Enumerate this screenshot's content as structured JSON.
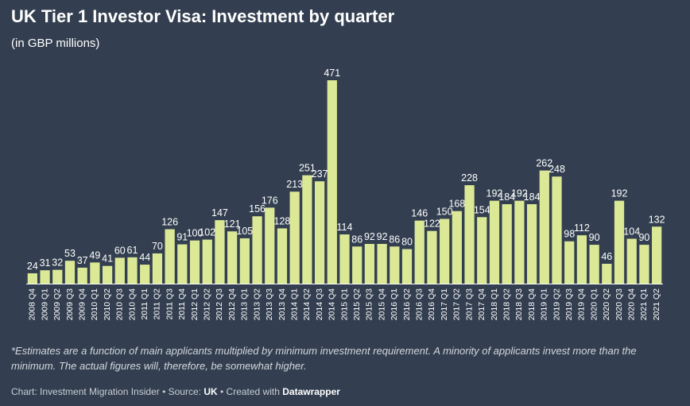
{
  "title": "UK Tier 1 Investor Visa: Investment by quarter",
  "subtitle": "(in GBP millions)",
  "note": "*Estimates are a function of main applicants multiplied by minimum investment requirement. A minority of applicants invest more than the minimum. The actual figures will, therefore, be somewhat higher.",
  "footer": {
    "prefix": "Chart: Investment Migration Insider • Source: ",
    "source": "UK",
    "middle": " • Created with ",
    "tool": "Datawrapper"
  },
  "colors": {
    "background": "#333f50",
    "bar": "#dbe896",
    "text": "#ffffff",
    "baseline": "#ffffff"
  },
  "chart_data": {
    "type": "bar",
    "title": "UK Tier 1 Investor Visa: Investment by quarter",
    "subtitle": "(in GBP millions)",
    "xlabel": "",
    "ylabel": "",
    "ylim": [
      0,
      471
    ],
    "grid": false,
    "data_labels": true,
    "categories": [
      "2008 Q4",
      "2009 Q1",
      "2009 Q2",
      "2009 Q3",
      "2009 Q4",
      "2010 Q1",
      "2010 Q2",
      "2010 Q3",
      "2010 Q4",
      "2011 Q1",
      "2011 Q2",
      "2011 Q3",
      "2011 Q4",
      "2012 Q1",
      "2012 Q2",
      "2012 Q3",
      "2012 Q4",
      "2013 Q1",
      "2013 Q2",
      "2013 Q3",
      "2013 Q4",
      "2014 Q1",
      "2014 Q2",
      "2014 Q3",
      "2014 Q4",
      "2015 Q1",
      "2015 Q2",
      "2015 Q3",
      "2015 Q4",
      "2016 Q1",
      "2016 Q2",
      "2016 Q3",
      "2016 Q4",
      "2017 Q1",
      "2017 Q2",
      "2017 Q3",
      "2017 Q4",
      "2018 Q1",
      "2018 Q2",
      "2018 Q3",
      "2018 Q4",
      "2019 Q1",
      "2019 Q2",
      "2019 Q3",
      "2019 Q4",
      "2020 Q1",
      "2020 Q2",
      "2020 Q3",
      "2020 Q4",
      "2021 Q1",
      "2021 Q2"
    ],
    "values": [
      24,
      31,
      32,
      53,
      37,
      49,
      41,
      60,
      61,
      44,
      70,
      126,
      91,
      100,
      102,
      147,
      121,
      105,
      156,
      176,
      128,
      213,
      251,
      237,
      471,
      114,
      86,
      92,
      92,
      86,
      80,
      146,
      122,
      150,
      168,
      228,
      154,
      192,
      184,
      192,
      184,
      262,
      248,
      98,
      112,
      90,
      46,
      192,
      104,
      90,
      132
    ]
  }
}
